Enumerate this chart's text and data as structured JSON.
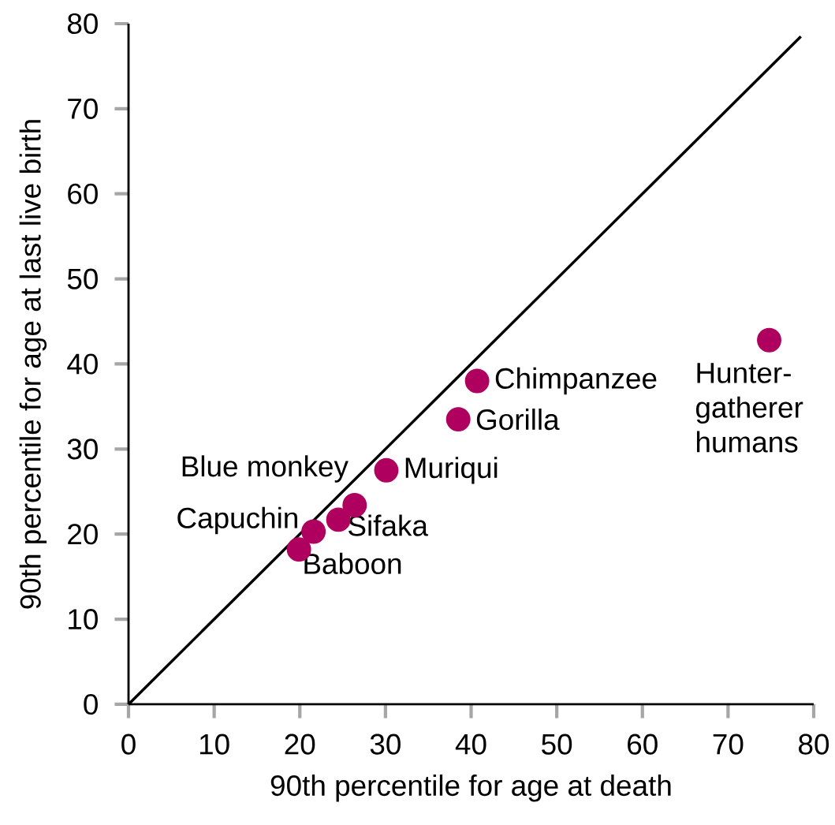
{
  "chart_data": {
    "type": "scatter",
    "xlabel": "90th percentile for age at death",
    "ylabel": "90th percentile for age at last live birth",
    "xlim": [
      0,
      80
    ],
    "ylim": [
      0,
      80
    ],
    "xticks": [
      0,
      10,
      20,
      30,
      40,
      50,
      60,
      70,
      80
    ],
    "yticks": [
      0,
      10,
      20,
      30,
      40,
      50,
      60,
      70,
      80
    ],
    "marker": "circle",
    "series": [
      {
        "color": "#b0005f",
        "x": [
          40.7,
          38.5,
          30.1,
          26.4,
          21.6,
          24.5,
          19.9,
          74.8
        ],
        "values": [
          38.0,
          33.5,
          27.5,
          23.4,
          20.3,
          21.7,
          18.2,
          42.8
        ]
      },
      {
        "type": "line",
        "marker": "none",
        "color": "#000000",
        "x": [
          0,
          78.5
        ],
        "values": [
          0,
          78.5
        ]
      }
    ],
    "annotations": [
      {
        "text": "Chimpanzee",
        "x": 40.7,
        "y": 38.0
      },
      {
        "text": "Gorilla",
        "x": 38.5,
        "y": 33.5
      },
      {
        "text": "Muriqui",
        "x": 30.1,
        "y": 27.5
      },
      {
        "text": "Blue monkey",
        "x": 26.4,
        "y": 23.4
      },
      {
        "text": "Capuchin",
        "x": 21.6,
        "y": 20.3
      },
      {
        "text": "Sifaka",
        "x": 24.5,
        "y": 21.7
      },
      {
        "text": "Baboon",
        "x": 19.9,
        "y": 18.2
      },
      {
        "text": "Hunter-gatherer humans",
        "x": 74.8,
        "y": 42.8
      }
    ]
  }
}
